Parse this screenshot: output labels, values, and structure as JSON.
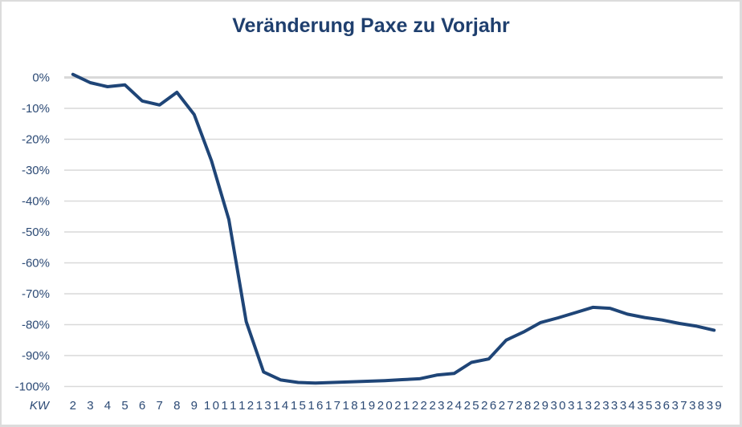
{
  "chart_data": {
    "type": "line",
    "title": "Veränderung Paxe zu Vorjahr",
    "xlabel": "KW",
    "ylabel": "",
    "ylim": [
      -1.0,
      0.0
    ],
    "yticks": [
      "0%",
      "-10%",
      "-20%",
      "-30%",
      "-40%",
      "-50%",
      "-60%",
      "-70%",
      "-80%",
      "-90%",
      "-100%"
    ],
    "grid": true,
    "legend": null,
    "categories": [
      "2",
      "3",
      "4",
      "5",
      "6",
      "7",
      "8",
      "9",
      "10",
      "11",
      "12",
      "13",
      "14",
      "15",
      "16",
      "17",
      "18",
      "19",
      "20",
      "21",
      "22",
      "23",
      "24",
      "25",
      "26",
      "27",
      "28",
      "29",
      "30",
      "31",
      "32",
      "33",
      "34",
      "35",
      "36",
      "37",
      "38",
      "39"
    ],
    "series": [
      {
        "name": "Veränderung Paxe zu Vorjahr",
        "color": "#1f4577",
        "values": [
          0.01,
          -0.017,
          -0.03,
          -0.024,
          -0.076,
          -0.089,
          -0.048,
          -0.12,
          -0.27,
          -0.46,
          -0.79,
          -0.953,
          -0.979,
          -0.987,
          -0.989,
          -0.987,
          -0.985,
          -0.983,
          -0.981,
          -0.978,
          -0.975,
          -0.963,
          -0.958,
          -0.922,
          -0.911,
          -0.85,
          -0.824,
          -0.793,
          -0.778,
          -0.761,
          -0.744,
          -0.747,
          -0.766,
          -0.777,
          -0.785,
          -0.796,
          -0.805,
          -0.818
        ]
      }
    ]
  },
  "colors": {
    "title": "#1f3f6e",
    "line": "#1f4577",
    "grid": "#d9d9d9",
    "axis_text": "#2c4a75"
  }
}
